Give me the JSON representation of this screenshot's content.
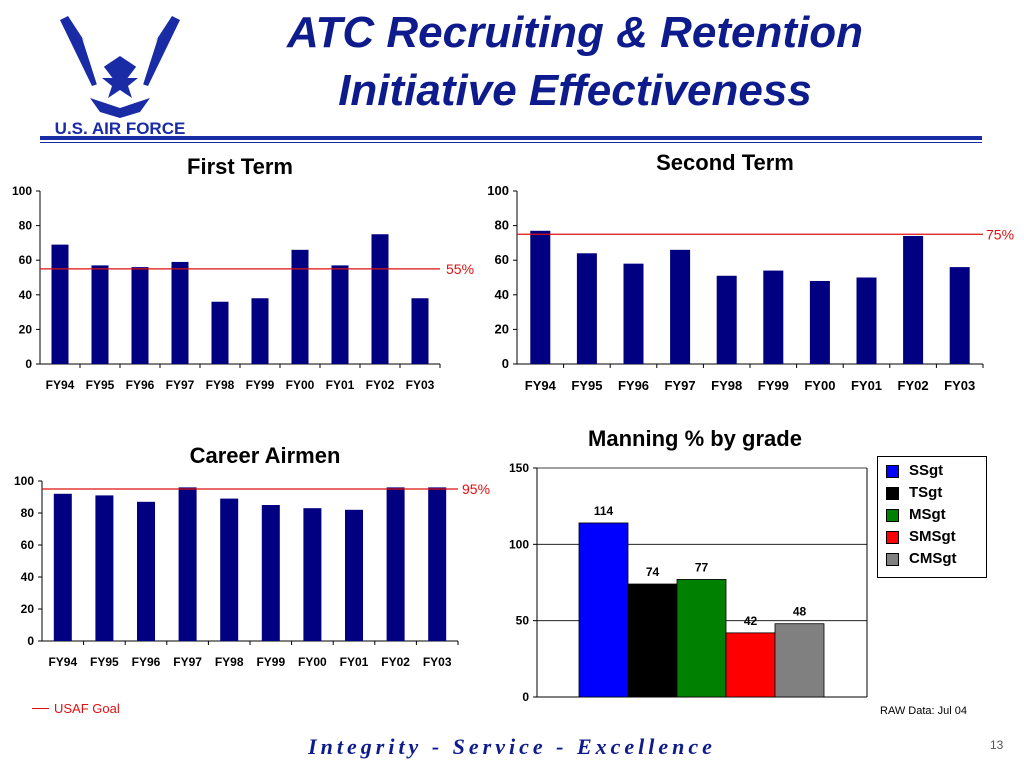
{
  "slide": {
    "title_line1": "ATC Recruiting & Retention",
    "title_line2": "Initiative Effectiveness",
    "logo_text": "U.S. AIR FORCE",
    "footer": "Integrity - Service - Excellence",
    "page_number": "13",
    "goal_legend": "USAF Goal",
    "raw_note": "RAW Data: Jul 04",
    "colors": {
      "navy": "#0d1b8c",
      "goal": "#dd1111"
    }
  },
  "chart_data": [
    {
      "type": "bar",
      "title": "First Term",
      "categories": [
        "FY94",
        "FY95",
        "FY96",
        "FY97",
        "FY98",
        "FY99",
        "FY00",
        "FY01",
        "FY02",
        "FY03"
      ],
      "values": [
        69,
        57,
        56,
        59,
        36,
        38,
        66,
        57,
        75,
        38
      ],
      "ylim": [
        0,
        100
      ],
      "yticks": [
        0,
        20,
        40,
        60,
        80,
        100
      ],
      "goal": 55,
      "goal_label": "55%",
      "bar_color": "#000080"
    },
    {
      "type": "bar",
      "title": "Second Term",
      "categories": [
        "FY94",
        "FY95",
        "FY96",
        "FY97",
        "FY98",
        "FY99",
        "FY00",
        "FY01",
        "FY02",
        "FY03"
      ],
      "values": [
        77,
        64,
        58,
        66,
        51,
        54,
        48,
        50,
        74,
        56
      ],
      "ylim": [
        0,
        100
      ],
      "yticks": [
        0,
        20,
        40,
        60,
        80,
        100
      ],
      "goal": 75,
      "goal_label": "75%",
      "bar_color": "#000080"
    },
    {
      "type": "bar",
      "title": "Career Airmen",
      "categories": [
        "FY94",
        "FY95",
        "FY96",
        "FY97",
        "FY98",
        "FY99",
        "FY00",
        "FY01",
        "FY02",
        "FY03"
      ],
      "values": [
        92,
        91,
        87,
        96,
        89,
        85,
        83,
        82,
        96,
        96
      ],
      "ylim": [
        0,
        100
      ],
      "yticks": [
        0,
        20,
        40,
        60,
        80,
        100
      ],
      "goal": 95,
      "goal_label": "95%",
      "bar_color": "#000080"
    },
    {
      "type": "bar",
      "title": "Manning % by grade",
      "categories": [
        "SSgt",
        "TSgt",
        "MSgt",
        "SMSgt",
        "CMSgt"
      ],
      "values": [
        114,
        74,
        77,
        42,
        48
      ],
      "ylim": [
        0,
        150
      ],
      "yticks": [
        0,
        50,
        100,
        150
      ],
      "colors": [
        "#0000ff",
        "#000000",
        "#008000",
        "#ff0000",
        "#808080"
      ],
      "legend": [
        "SSgt",
        "TSgt",
        "MSgt",
        "SMSgt",
        "CMSgt"
      ],
      "legend_position": "right"
    }
  ]
}
